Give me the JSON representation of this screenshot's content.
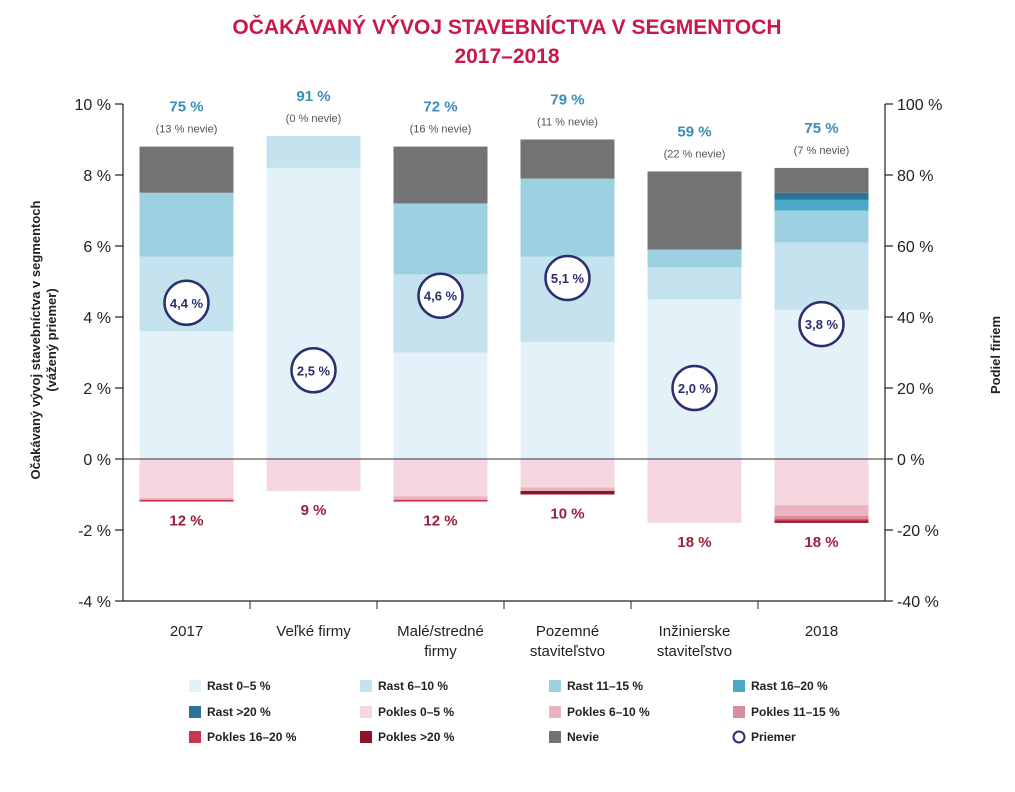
{
  "chart_data": {
    "type": "bar",
    "title_line1": "OČAKÁVANÝ VÝVOJ STAVEBNÍCTVA V SEGMENTOCH",
    "title_line2": "2017–2018",
    "ylabel_left_line1": "Očakávaný vývoj stavebníctva v segmentoch",
    "ylabel_left_line2": "(vážený priemer)",
    "ylabel_right": "Podiel firiem",
    "ylim": [
      -4,
      10
    ],
    "yticks_left": [
      {
        "value": 10,
        "label": "10 %"
      },
      {
        "value": 8,
        "label": "8 %"
      },
      {
        "value": 6,
        "label": "6 %"
      },
      {
        "value": 4,
        "label": "4 %"
      },
      {
        "value": 2,
        "label": "2 %"
      },
      {
        "value": 0,
        "label": "0 %"
      },
      {
        "value": -2,
        "label": "-2 %"
      },
      {
        "value": -4,
        "label": "-4 %"
      }
    ],
    "yticks_right": [
      {
        "value": 10,
        "label": "100 %"
      },
      {
        "value": 8,
        "label": "80 %"
      },
      {
        "value": 6,
        "label": "60 %"
      },
      {
        "value": 4,
        "label": "40 %"
      },
      {
        "value": 2,
        "label": "20 %"
      },
      {
        "value": 0,
        "label": "0 %"
      },
      {
        "value": -2,
        "label": "-20 %"
      },
      {
        "value": -4,
        "label": "-40 %"
      }
    ],
    "categories": [
      [
        "2017"
      ],
      [
        "Veľké firmy"
      ],
      [
        "Malé/stredné",
        "firmy"
      ],
      [
        "Pozemné",
        "staviteľstvo"
      ],
      [
        "Inžinierske",
        "staviteľstvo"
      ],
      [
        "2018"
      ]
    ],
    "positive_labels": [
      "75 %",
      "91 %",
      "72 %",
      "79 %",
      "59 %",
      "75 %"
    ],
    "nevie_labels": [
      "(13 % nevie)",
      "(0 % nevie)",
      "(16 % nevie)",
      "(11 % nevie)",
      "(22 % nevie)",
      "(7 % nevie)"
    ],
    "negative_labels": [
      "12 %",
      "9 %",
      "12 %",
      "10 %",
      "18 %",
      "18 %"
    ],
    "average_labels": [
      "4,4 %",
      "2,5 %",
      "4,6 %",
      "5,1 %",
      "2,0 %",
      "3,8 %"
    ],
    "averages": [
      4.4,
      2.5,
      4.6,
      5.1,
      2.0,
      3.8
    ],
    "series": [
      {
        "name": "Rast 0–5 %",
        "color": "#e3f1f8",
        "sign": 1,
        "values": [
          3.6,
          8.2,
          3.0,
          3.3,
          4.5,
          4.2
        ]
      },
      {
        "name": "Rast 6–10 %",
        "color": "#c4e3ef",
        "sign": 1,
        "values": [
          2.1,
          0.9,
          2.2,
          2.4,
          0.9,
          1.9
        ]
      },
      {
        "name": "Rast 11–15 %",
        "color": "#9dd0e0",
        "sign": 1,
        "values": [
          1.8,
          0.0,
          2.0,
          2.2,
          0.5,
          0.9
        ]
      },
      {
        "name": "Rast 16–20 %",
        "color": "#4aa8c8",
        "sign": 1,
        "values": [
          0.0,
          0.0,
          0.0,
          0.0,
          0.0,
          0.3
        ]
      },
      {
        "name": "Rast >20 %",
        "color": "#2a7396",
        "sign": 1,
        "values": [
          0.0,
          0.0,
          0.0,
          0.0,
          0.0,
          0.2
        ]
      },
      {
        "name": "Nevie",
        "color": "#737373",
        "sign": 1,
        "values": [
          1.3,
          0.0,
          1.6,
          1.1,
          2.2,
          0.7
        ]
      },
      {
        "name": "Pokles 0–5 %",
        "color": "#f6d7df",
        "sign": -1,
        "values": [
          1.1,
          0.9,
          1.05,
          0.8,
          1.8,
          1.3
        ]
      },
      {
        "name": "Pokles 6–10 %",
        "color": "#ebb3c0",
        "sign": -1,
        "values": [
          0.05,
          0.0,
          0.1,
          0.1,
          0.0,
          0.3
        ]
      },
      {
        "name": "Pokles 11–15 %",
        "color": "#d98c9e",
        "sign": -1,
        "values": [
          0.0,
          0.0,
          0.0,
          0.0,
          0.0,
          0.1
        ]
      },
      {
        "name": "Pokles 16–20 %",
        "color": "#c8374f",
        "sign": -1,
        "values": [
          0.05,
          0.0,
          0.05,
          0.0,
          0.0,
          0.05
        ]
      },
      {
        "name": "Pokles >20 %",
        "color": "#8c1428",
        "sign": -1,
        "values": [
          0.0,
          0.0,
          0.0,
          0.1,
          0.0,
          0.05
        ]
      }
    ],
    "legend": [
      {
        "label": "Rast 0–5 %",
        "color": "#e3f1f8",
        "kind": "square"
      },
      {
        "label": "Rast 6–10 %",
        "color": "#c4e3ef",
        "kind": "square"
      },
      {
        "label": "Rast 11–15 %",
        "color": "#9dd0e0",
        "kind": "square"
      },
      {
        "label": "Rast 16–20 %",
        "color": "#4aa8c8",
        "kind": "square"
      },
      {
        "label": "Rast >20 %",
        "color": "#2a7396",
        "kind": "square"
      },
      {
        "label": "Pokles 0–5 %",
        "color": "#f6d7df",
        "kind": "square"
      },
      {
        "label": "Pokles 6–10 %",
        "color": "#ebb3c0",
        "kind": "square"
      },
      {
        "label": "Pokles 11–15 %",
        "color": "#d98c9e",
        "kind": "square"
      },
      {
        "label": "Pokles 16–20 %",
        "color": "#c8374f",
        "kind": "square"
      },
      {
        "label": "Pokles >20 %",
        "color": "#8c1428",
        "kind": "square"
      },
      {
        "label": "Nevie",
        "color": "#737373",
        "kind": "square"
      },
      {
        "label": "Priemer",
        "color": "#2b2f6e",
        "kind": "circle"
      }
    ],
    "legend_placement": "bottom",
    "grid": false
  }
}
